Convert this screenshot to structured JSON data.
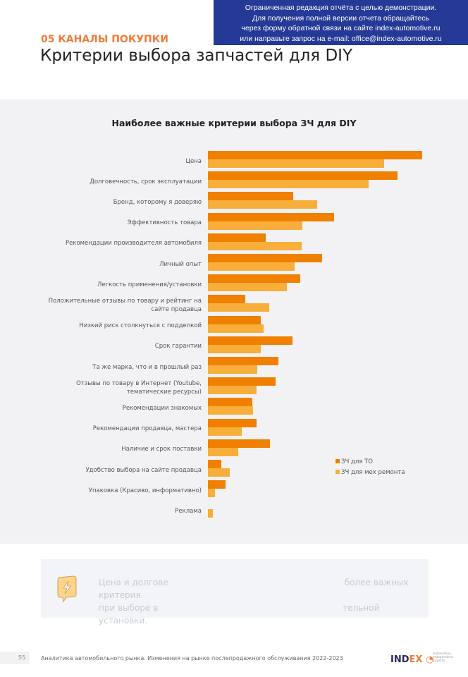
{
  "banner": {
    "lines": [
      "Ограниченная редакция отчёта с целью демонстрации.",
      "Для получения полной версии отчета обращайтесь",
      "через форму обратной связи на сайте index-automotive.ru",
      "или направьте запрос на e-mail: office@index-automotive.ru"
    ]
  },
  "header": {
    "section": "05 КАНАЛЫ ПОКУПКИ",
    "title": "Критерии выбора запчастей для DIY"
  },
  "chart_data": {
    "type": "bar",
    "orientation": "horizontal",
    "title": "Наиболее важные критерии выбора ЗЧ для DIY",
    "legend": [
      "ЗЧ для ТО",
      "ЗЧ для мех ремонта"
    ],
    "legend_placement": "right",
    "colors": [
      "#f08000",
      "#f8ae3a"
    ],
    "categories": [
      "Цена",
      "Долговечность, срок эксплуатации",
      "Бренд, которому я доверяю",
      "Эффективность товара",
      "Рекомендации производителя автомобиля",
      "Личный опыт",
      "Легкость применения/установки",
      "Положительные отзывы по товару и рейтинг на сайте продавца",
      "Низкий риск столкнуться с подделкой",
      "Срок гарантии",
      "Та же марка, что и в прошлый раз",
      "Отзывы по товару в Интернет (Youtube, тематические ресурсы)",
      "Рекомендации знакомых",
      "Рекомендации продавца, мастера",
      "Наличие и срок поставки",
      "Удобство выбора на сайте продавца",
      "Упаковка (Красиво, информативно)",
      "Реклама"
    ],
    "series": [
      {
        "name": "ЗЧ для ТО",
        "values": [
          40,
          35.4,
          15.9,
          23.6,
          10.8,
          21.3,
          17.2,
          7,
          9.9,
          15.8,
          13.2,
          12.6,
          8.3,
          9.1,
          11.6,
          2.5,
          3.3,
          0
        ]
      },
      {
        "name": "ЗЧ для мех ремонта",
        "values": [
          32.9,
          30,
          20.4,
          17.6,
          17.5,
          16.2,
          14.7,
          11.4,
          10.4,
          9.9,
          9.2,
          9.1,
          8.4,
          6.3,
          5.7,
          4.1,
          1.3,
          0.9
        ]
      }
    ],
    "xlim": [
      0,
      40
    ],
    "grid": false
  },
  "callout": {
    "text_left_1": "Цена и долгове",
    "text_left_2": "при выборе в",
    "text_right_1": "более важных критерия",
    "text_right_2": "тельной установки."
  },
  "footer": {
    "page": "55",
    "text": "Аналитика автомобильного рынка. Изменения на рынке послепродажного обслуживания 2022-2023",
    "logo": "INDEX",
    "logo_sub": [
      "Automotive",
      "Independent",
      "Experts"
    ]
  }
}
